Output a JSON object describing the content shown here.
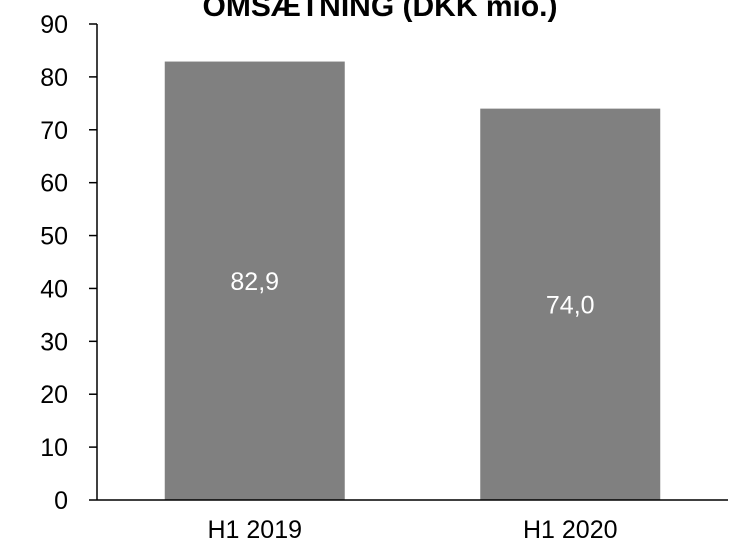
{
  "chart_data": {
    "type": "bar",
    "title": "OMSÆTNING (DKK mio.)",
    "xlabel": "",
    "ylabel": "",
    "categories": [
      "H1 2019",
      "H1 2020"
    ],
    "values": [
      82.9,
      74.0
    ],
    "data_labels": [
      "82,9",
      "74,0"
    ],
    "ylim": [
      0,
      90
    ],
    "yticks": [
      0,
      10,
      20,
      30,
      40,
      50,
      60,
      70,
      80,
      90
    ],
    "grid": false,
    "legend": "none",
    "bar_color": "#808080",
    "axis_color": "#000000",
    "label_color": "#ffffff"
  }
}
